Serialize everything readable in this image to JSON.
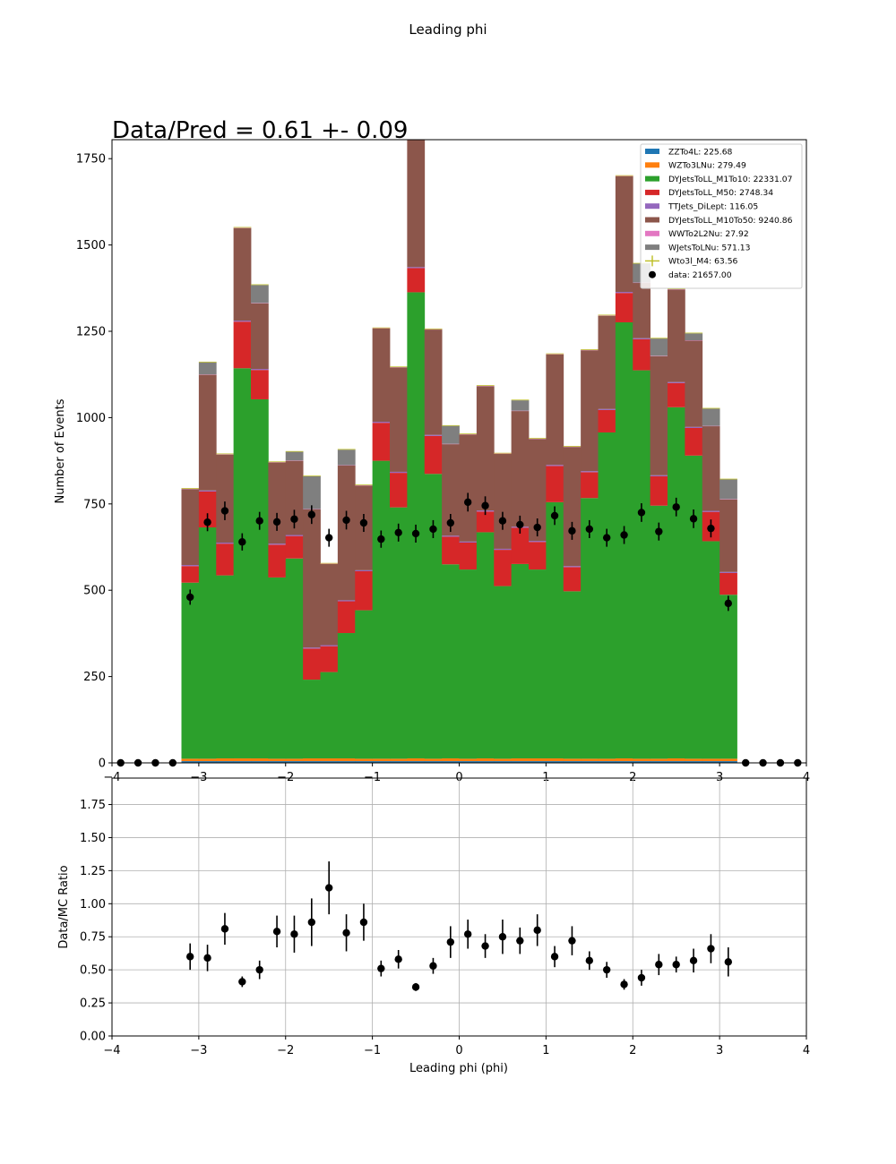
{
  "figure": {
    "suptitle": "Leading phi",
    "annotation": "Data/Pred = 0.61 +- 0.09"
  },
  "chart_data": [
    {
      "type": "bar",
      "subtype": "stacked-histogram-with-data-points",
      "ylabel": "Number of Events",
      "xlim": [
        -4,
        4
      ],
      "ylim": [
        0,
        1805
      ],
      "xticks": [
        -4,
        -3,
        -2,
        -1,
        0,
        1,
        2,
        3,
        4
      ],
      "yticks": [
        0,
        250,
        500,
        750,
        1000,
        1250,
        1500,
        1750
      ],
      "grid": false,
      "legend_position": "top-right",
      "bin_edges": [
        -4.0,
        -3.8,
        -3.6,
        -3.4,
        -3.2,
        -3.0,
        -2.8,
        -2.6,
        -2.4,
        -2.2,
        -2.0,
        -1.8,
        -1.6,
        -1.4,
        -1.2,
        -1.0,
        -0.8,
        -0.6,
        -0.4,
        -0.2,
        0.0,
        0.2,
        0.4,
        0.6,
        0.8,
        1.0,
        1.2,
        1.4,
        1.6,
        1.8,
        2.0,
        2.2,
        2.4,
        2.6,
        2.8,
        3.0,
        3.2,
        3.4,
        3.6,
        3.8,
        4.0
      ],
      "series": [
        {
          "name": "ZZTo4L",
          "legend": "ZZTo4L: 225.68",
          "color": "#1f77b4",
          "values": [
            0,
            0,
            0,
            0,
            5,
            5,
            5,
            5,
            5,
            5,
            5,
            5,
            5,
            5,
            5,
            5,
            5,
            5,
            5,
            5,
            5,
            5,
            5,
            5,
            5,
            5,
            5,
            5,
            5,
            5,
            5,
            5,
            5,
            5,
            5,
            5,
            0,
            0,
            0,
            0
          ]
        },
        {
          "name": "WZTo3LNu",
          "legend": "WZTo3LNu: 279.49",
          "color": "#ff7f0e",
          "values": [
            0,
            0,
            0,
            0,
            7,
            7,
            8,
            8,
            8,
            7,
            7,
            8,
            8,
            8,
            7,
            7,
            7,
            8,
            7,
            8,
            7,
            8,
            7,
            8,
            8,
            8,
            7,
            7,
            7,
            8,
            7,
            7,
            8,
            7,
            7,
            7,
            0,
            0,
            0,
            0
          ]
        },
        {
          "name": "DYJetsToLL_M1To10",
          "legend": "DYJetsToLL_M1To10: 22331.07",
          "color": "#2ca02c",
          "values": [
            0,
            0,
            0,
            0,
            510,
            670,
            530,
            1130,
            1040,
            525,
            580,
            228,
            250,
            363,
            430,
            863,
            728,
            1350,
            825,
            562,
            548,
            655,
            500,
            563,
            547,
            742,
            485,
            755,
            945,
            1263,
            1125,
            733,
            1017,
            878,
            630,
            475,
            0,
            0,
            0,
            0
          ]
        },
        {
          "name": "DYJetsToLL_M50",
          "legend": "DYJetsToLL_M50: 2748.34",
          "color": "#d62728",
          "values": [
            0,
            0,
            0,
            0,
            48,
            104,
            92,
            135,
            85,
            95,
            65,
            90,
            75,
            92,
            113,
            110,
            100,
            70,
            110,
            80,
            78,
            60,
            105,
            105,
            80,
            105,
            70,
            75,
            65,
            85,
            90,
            85,
            70,
            80,
            85,
            63,
            0,
            0,
            0,
            0
          ]
        },
        {
          "name": "TTJets_DiLept",
          "legend": "TTJets_DiLept: 116.05",
          "color": "#9467bd",
          "values": [
            0,
            0,
            0,
            0,
            3,
            3,
            3,
            3,
            3,
            3,
            3,
            3,
            3,
            3,
            3,
            3,
            3,
            3,
            3,
            3,
            3,
            3,
            3,
            3,
            3,
            3,
            3,
            3,
            3,
            3,
            3,
            3,
            3,
            3,
            3,
            3,
            0,
            0,
            0,
            0
          ]
        },
        {
          "name": "DYJetsToLL_M10To50",
          "legend": "DYJetsToLL_M10To50: 9240.86",
          "color": "#8c564b",
          "values": [
            0,
            0,
            0,
            0,
            220,
            335,
            255,
            268,
            190,
            235,
            215,
            400,
            235,
            390,
            245,
            270,
            302,
            370,
            305,
            265,
            310,
            360,
            275,
            335,
            295,
            320,
            345,
            350,
            270,
            335,
            160,
            345,
            268,
            250,
            245,
            210,
            0,
            0,
            0,
            0
          ]
        },
        {
          "name": "WWTo2L2Nu",
          "legend": "WWTo2L2Nu: 27.92",
          "color": "#e377c2",
          "values": [
            0,
            0,
            0,
            0,
            1,
            1,
            1,
            1,
            1,
            1,
            1,
            1,
            1,
            1,
            1,
            1,
            1,
            1,
            1,
            1,
            1,
            1,
            1,
            1,
            1,
            1,
            1,
            1,
            1,
            1,
            1,
            1,
            1,
            1,
            1,
            1,
            0,
            0,
            0,
            0
          ]
        },
        {
          "name": "WJetsToLNu",
          "legend": "WJetsToLNu: 571.13",
          "color": "#7f7f7f",
          "values": [
            0,
            0,
            0,
            0,
            0,
            35,
            0,
            0,
            52,
            0,
            25,
            95,
            0,
            45,
            0,
            0,
            0,
            40,
            0,
            52,
            0,
            0,
            0,
            30,
            0,
            0,
            0,
            0,
            0,
            0,
            55,
            50,
            0,
            20,
            50,
            57,
            0,
            0,
            0,
            0
          ]
        },
        {
          "name": "Wto3l_M4",
          "legend": "Wto3l_M4: 63.56",
          "color": "#bcbd22",
          "values": [
            0,
            0,
            0,
            0,
            2,
            2,
            2,
            2,
            2,
            2,
            2,
            2,
            2,
            2,
            2,
            2,
            2,
            2,
            2,
            2,
            2,
            2,
            2,
            2,
            2,
            2,
            2,
            2,
            2,
            2,
            2,
            2,
            2,
            2,
            2,
            2,
            0,
            0,
            0,
            0
          ]
        }
      ],
      "data_points": {
        "name": "data",
        "legend": "data: 21657.00",
        "color": "#000000",
        "x": [
          -3.9,
          -3.7,
          -3.5,
          -3.3,
          -3.1,
          -2.9,
          -2.7,
          -2.5,
          -2.3,
          -2.1,
          -1.9,
          -1.7,
          -1.5,
          -1.3,
          -1.1,
          -0.9,
          -0.7,
          -0.5,
          -0.3,
          -0.1,
          0.1,
          0.3,
          0.5,
          0.7,
          0.9,
          1.1,
          1.3,
          1.5,
          1.7,
          1.9,
          2.1,
          2.3,
          2.5,
          2.7,
          2.9,
          3.1,
          3.3,
          3.5,
          3.7,
          3.9
        ],
        "y": [
          0,
          0,
          0,
          0,
          480,
          697,
          730,
          640,
          701,
          698,
          706,
          719,
          652,
          703,
          695,
          648,
          667,
          664,
          677,
          695,
          755,
          745,
          701,
          690,
          682,
          716,
          672,
          677,
          652,
          660,
          725,
          670,
          741,
          707,
          679,
          462,
          0,
          0,
          0,
          0
        ],
        "yerr": [
          0,
          0,
          0,
          0,
          22,
          26,
          27,
          25,
          26,
          26,
          27,
          27,
          26,
          27,
          26,
          25,
          26,
          26,
          26,
          26,
          27,
          27,
          26,
          26,
          26,
          27,
          26,
          26,
          26,
          26,
          27,
          26,
          27,
          27,
          26,
          22,
          0,
          0,
          0,
          0
        ]
      }
    },
    {
      "type": "scatter",
      "subtype": "ratio-with-error-bars",
      "xlabel": "Leading phi (phi)",
      "ylabel": "Data/MC Ratio",
      "xlim": [
        -4,
        4
      ],
      "ylim": [
        0,
        1.95
      ],
      "xticks": [
        -4,
        -3,
        -2,
        -1,
        0,
        1,
        2,
        3,
        4
      ],
      "yticks": [
        0.0,
        0.25,
        0.5,
        0.75,
        1.0,
        1.25,
        1.5,
        1.75
      ],
      "ytick_labels": [
        "0.00",
        "0.25",
        "0.50",
        "0.75",
        "1.00",
        "1.25",
        "1.50",
        "1.75"
      ],
      "grid": true,
      "x": [
        -3.1,
        -2.9,
        -2.7,
        -2.5,
        -2.3,
        -2.1,
        -1.9,
        -1.7,
        -1.5,
        -1.3,
        -1.1,
        -0.9,
        -0.7,
        -0.5,
        -0.3,
        -0.1,
        0.1,
        0.3,
        0.5,
        0.7,
        0.9,
        1.1,
        1.3,
        1.5,
        1.7,
        1.9,
        2.1,
        2.3,
        2.5,
        2.7,
        2.9,
        3.1
      ],
      "y": [
        0.6,
        0.59,
        0.81,
        0.41,
        0.5,
        0.79,
        0.77,
        0.86,
        1.12,
        0.78,
        0.86,
        0.51,
        0.58,
        0.37,
        0.53,
        0.71,
        0.77,
        0.68,
        0.75,
        0.72,
        0.8,
        0.6,
        0.72,
        0.57,
        0.5,
        0.39,
        0.44,
        0.54,
        0.54,
        0.57,
        0.66,
        0.56
      ],
      "yerr": [
        0.1,
        0.1,
        0.12,
        0.04,
        0.07,
        0.12,
        0.14,
        0.18,
        0.2,
        0.14,
        0.14,
        0.06,
        0.07,
        0.03,
        0.06,
        0.12,
        0.11,
        0.09,
        0.13,
        0.1,
        0.12,
        0.08,
        0.11,
        0.07,
        0.06,
        0.04,
        0.06,
        0.08,
        0.06,
        0.09,
        0.11,
        0.11
      ]
    }
  ]
}
